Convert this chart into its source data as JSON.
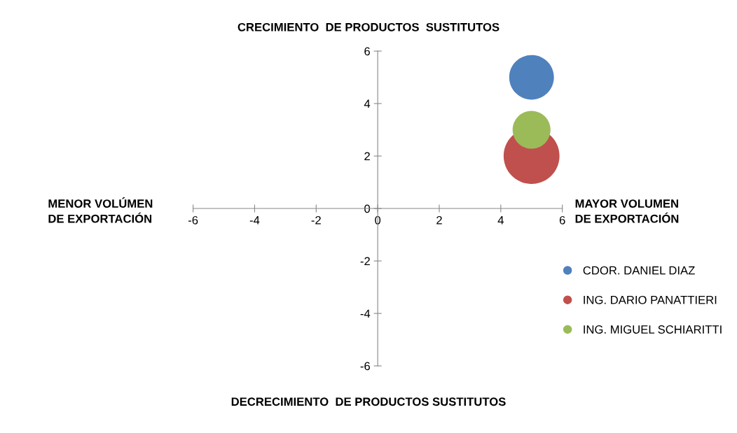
{
  "chart_data": {
    "type": "bubble",
    "series": [
      {
        "name": "CDOR. DANIEL DIAZ",
        "color": "#4f81bd",
        "values": [
          5
        ],
        "sizes": [
          0.64
        ]
      },
      {
        "name": "ING. DARIO PANATTIERI",
        "color": "#c0504d",
        "values": [
          2
        ],
        "sizes": [
          1
        ]
      },
      {
        "name": "ING. MIGUEL SCHIARITTI",
        "color": "#9bbb59",
        "values": [
          3
        ],
        "sizes": [
          0.46
        ]
      }
    ],
    "x": [
      5
    ],
    "xlim": [
      -6,
      6
    ],
    "ylim": [
      -6,
      6
    ],
    "xticks": [
      -6,
      -4,
      -2,
      0,
      2,
      4,
      6
    ],
    "yticks": [
      -6,
      -4,
      -2,
      0,
      2,
      4,
      6
    ],
    "annotations": [
      "CRECIMIENTO  DE PRODUCTOS  SUSTITUTOS",
      "DECRECIMIENTO  DE PRODUCTOS SUSTITUTOS",
      "MENOR VOLÚMEN\nDE EXPORTACIÓN",
      "MAYOR VOLUMEN\nDE EXPORTACIÓN"
    ],
    "grid": false,
    "legend": "right"
  }
}
